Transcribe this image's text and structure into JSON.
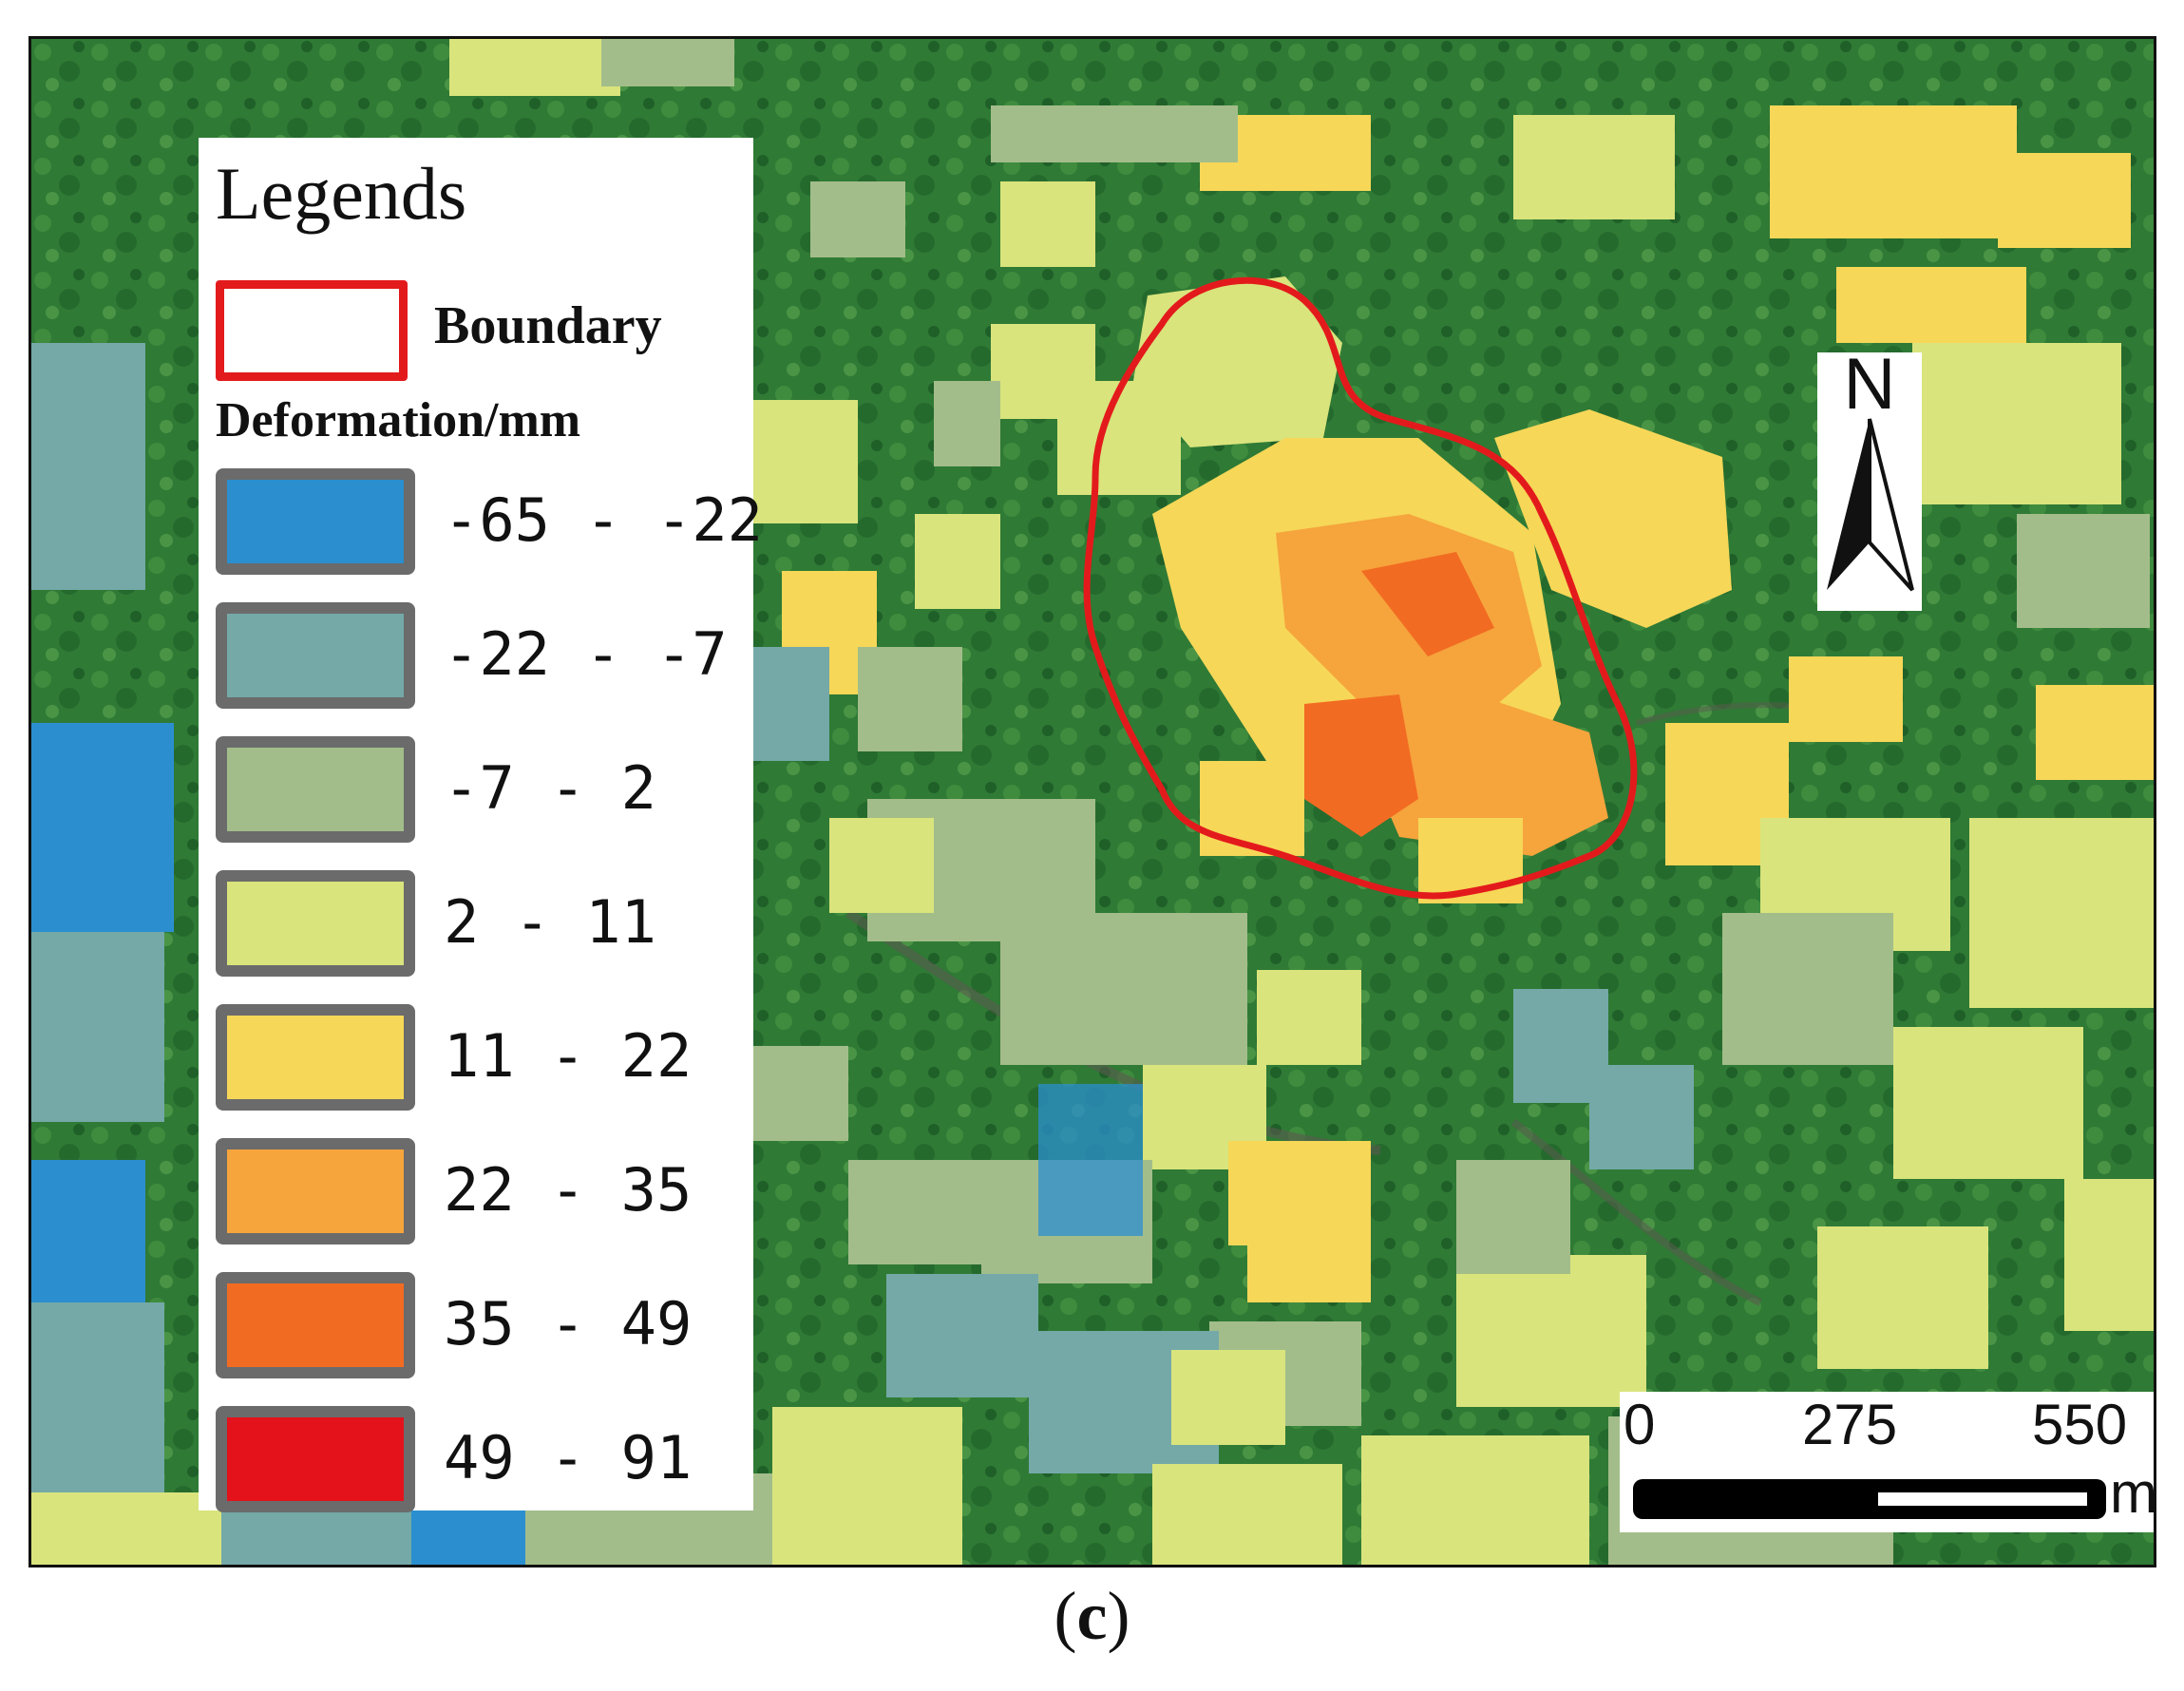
{
  "legend": {
    "title": "Legends",
    "boundary_label": "Boundary",
    "boundary_color": "#e31a1c",
    "deformation_title": "Deformation/mm",
    "classes": [
      {
        "label": "-65 - -22",
        "color": "#2b8fcf"
      },
      {
        "label": "-22 - -7",
        "color": "#74a9a8"
      },
      {
        "label": "-7 - 2",
        "color": "#a3bd8a"
      },
      {
        "label": "2 - 11",
        "color": "#d9e47c"
      },
      {
        "label": "11 - 22",
        "color": "#f6d758"
      },
      {
        "label": "22 - 35",
        "color": "#f6a43c"
      },
      {
        "label": "35 - 49",
        "color": "#f26b22"
      },
      {
        "label": "49 - 91",
        "color": "#e3121b"
      }
    ]
  },
  "north_arrow": {
    "label": "N"
  },
  "scale_bar": {
    "ticks": [
      "0",
      "275",
      "550"
    ],
    "unit": "m"
  },
  "caption": {
    "open": "(",
    "letter": "c",
    "close": ")"
  },
  "map": {
    "background_color": "#2f7a35",
    "boundary_stroke": "#e31a1c"
  }
}
